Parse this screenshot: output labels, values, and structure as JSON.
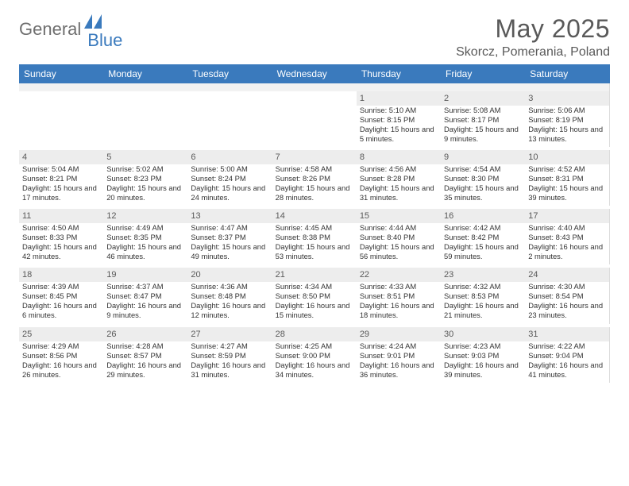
{
  "brand": {
    "part1": "General",
    "part2": "Blue"
  },
  "title": {
    "month": "May 2025",
    "location": "Skorcz, Pomerania, Poland"
  },
  "colors": {
    "header_bg": "#3a7abd",
    "header_text": "#ffffff",
    "daynum_bg": "#ededed",
    "sep_bg": "#f2f2f2",
    "text": "#333333",
    "muted": "#595959"
  },
  "dow": [
    "Sunday",
    "Monday",
    "Tuesday",
    "Wednesday",
    "Thursday",
    "Friday",
    "Saturday"
  ],
  "weeks": [
    [
      null,
      null,
      null,
      null,
      {
        "n": "1",
        "r": "5:10 AM",
        "s": "8:15 PM",
        "d": "15 hours and 5 minutes."
      },
      {
        "n": "2",
        "r": "5:08 AM",
        "s": "8:17 PM",
        "d": "15 hours and 9 minutes."
      },
      {
        "n": "3",
        "r": "5:06 AM",
        "s": "8:19 PM",
        "d": "15 hours and 13 minutes."
      }
    ],
    [
      {
        "n": "4",
        "r": "5:04 AM",
        "s": "8:21 PM",
        "d": "15 hours and 17 minutes."
      },
      {
        "n": "5",
        "r": "5:02 AM",
        "s": "8:23 PM",
        "d": "15 hours and 20 minutes."
      },
      {
        "n": "6",
        "r": "5:00 AM",
        "s": "8:24 PM",
        "d": "15 hours and 24 minutes."
      },
      {
        "n": "7",
        "r": "4:58 AM",
        "s": "8:26 PM",
        "d": "15 hours and 28 minutes."
      },
      {
        "n": "8",
        "r": "4:56 AM",
        "s": "8:28 PM",
        "d": "15 hours and 31 minutes."
      },
      {
        "n": "9",
        "r": "4:54 AM",
        "s": "8:30 PM",
        "d": "15 hours and 35 minutes."
      },
      {
        "n": "10",
        "r": "4:52 AM",
        "s": "8:31 PM",
        "d": "15 hours and 39 minutes."
      }
    ],
    [
      {
        "n": "11",
        "r": "4:50 AM",
        "s": "8:33 PM",
        "d": "15 hours and 42 minutes."
      },
      {
        "n": "12",
        "r": "4:49 AM",
        "s": "8:35 PM",
        "d": "15 hours and 46 minutes."
      },
      {
        "n": "13",
        "r": "4:47 AM",
        "s": "8:37 PM",
        "d": "15 hours and 49 minutes."
      },
      {
        "n": "14",
        "r": "4:45 AM",
        "s": "8:38 PM",
        "d": "15 hours and 53 minutes."
      },
      {
        "n": "15",
        "r": "4:44 AM",
        "s": "8:40 PM",
        "d": "15 hours and 56 minutes."
      },
      {
        "n": "16",
        "r": "4:42 AM",
        "s": "8:42 PM",
        "d": "15 hours and 59 minutes."
      },
      {
        "n": "17",
        "r": "4:40 AM",
        "s": "8:43 PM",
        "d": "16 hours and 2 minutes."
      }
    ],
    [
      {
        "n": "18",
        "r": "4:39 AM",
        "s": "8:45 PM",
        "d": "16 hours and 6 minutes."
      },
      {
        "n": "19",
        "r": "4:37 AM",
        "s": "8:47 PM",
        "d": "16 hours and 9 minutes."
      },
      {
        "n": "20",
        "r": "4:36 AM",
        "s": "8:48 PM",
        "d": "16 hours and 12 minutes."
      },
      {
        "n": "21",
        "r": "4:34 AM",
        "s": "8:50 PM",
        "d": "16 hours and 15 minutes."
      },
      {
        "n": "22",
        "r": "4:33 AM",
        "s": "8:51 PM",
        "d": "16 hours and 18 minutes."
      },
      {
        "n": "23",
        "r": "4:32 AM",
        "s": "8:53 PM",
        "d": "16 hours and 21 minutes."
      },
      {
        "n": "24",
        "r": "4:30 AM",
        "s": "8:54 PM",
        "d": "16 hours and 23 minutes."
      }
    ],
    [
      {
        "n": "25",
        "r": "4:29 AM",
        "s": "8:56 PM",
        "d": "16 hours and 26 minutes."
      },
      {
        "n": "26",
        "r": "4:28 AM",
        "s": "8:57 PM",
        "d": "16 hours and 29 minutes."
      },
      {
        "n": "27",
        "r": "4:27 AM",
        "s": "8:59 PM",
        "d": "16 hours and 31 minutes."
      },
      {
        "n": "28",
        "r": "4:25 AM",
        "s": "9:00 PM",
        "d": "16 hours and 34 minutes."
      },
      {
        "n": "29",
        "r": "4:24 AM",
        "s": "9:01 PM",
        "d": "16 hours and 36 minutes."
      },
      {
        "n": "30",
        "r": "4:23 AM",
        "s": "9:03 PM",
        "d": "16 hours and 39 minutes."
      },
      {
        "n": "31",
        "r": "4:22 AM",
        "s": "9:04 PM",
        "d": "16 hours and 41 minutes."
      }
    ]
  ],
  "labels": {
    "sunrise": "Sunrise:",
    "sunset": "Sunset:",
    "daylight": "Daylight:"
  }
}
